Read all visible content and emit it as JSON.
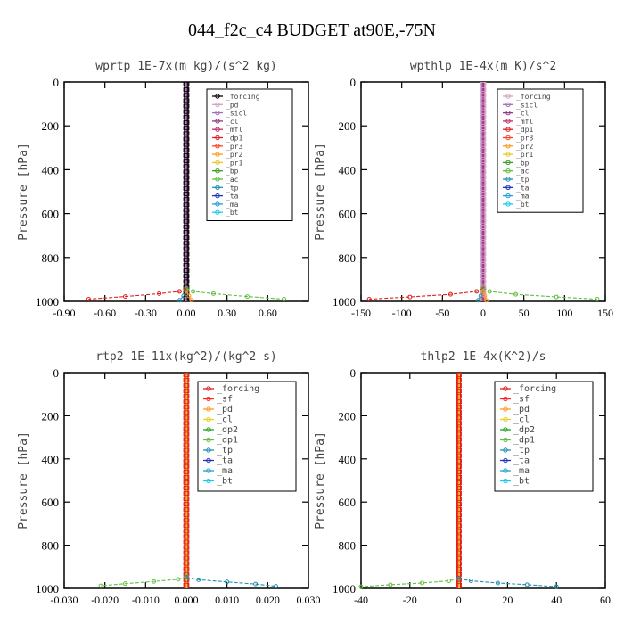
{
  "figure_title": "044_f2c_c4  BUDGET at90E,-75N",
  "colors": {
    "frame": "#000000",
    "text": "#444444",
    "forcing": "#000000",
    "pd": "#d4a0c8",
    "sicl": "#a070b8",
    "cl": "#8b3a8b",
    "mfl": "#c0306a",
    "dp1": "#e02020",
    "pr3": "#ff4020",
    "pr2": "#ff9a20",
    "pr1": "#e6c830",
    "bp": "#3aa020",
    "ac": "#60c040",
    "tp": "#2090b0",
    "ta": "#2030c0",
    "ma": "#20a0d0",
    "bt": "#20c8e8",
    "forcing_red": "#e02020",
    "sf": "#ff2020",
    "pd_orange": "#ff9a20",
    "cl_yellow": "#e6d020",
    "dp2": "#20a020",
    "dp1_green": "#60c040"
  },
  "chart_data": [
    {
      "type": "line",
      "title": "wprtp  1E-7x(m kg)/(s^2 kg)",
      "ylabel": "Pressure [hPa]",
      "xlim": [
        -0.9,
        0.9
      ],
      "ylim": [
        1000,
        0
      ],
      "xticks": [
        -0.9,
        -0.6,
        -0.3,
        0.0,
        0.3,
        0.6
      ],
      "xtick_labels": [
        "-0.90",
        "-0.60",
        "-0.30",
        "0.00",
        "0.30",
        "0.60"
      ],
      "yticks": [
        0,
        200,
        400,
        600,
        800,
        1000
      ],
      "ytick_labels": [
        "0",
        "200",
        "400",
        "600",
        "800",
        "1000"
      ],
      "legend": [
        "_forcing",
        "_pd",
        "_sicl",
        "_cl",
        "_mfl",
        "_dp1",
        "_pr3",
        "_pr2",
        "_pr1",
        "_bp",
        "_ac",
        "_tp",
        "_ta",
        "_ma",
        "_bt"
      ],
      "legend_colors": [
        "forcing",
        "pd",
        "sicl",
        "cl",
        "mfl",
        "dp1",
        "pr3",
        "pr2",
        "pr1",
        "bp",
        "ac",
        "tp",
        "ta",
        "ma",
        "bt"
      ],
      "series": [
        {
          "name": "_dp1",
          "color": "dp1",
          "x": [
            0,
            -0.05,
            -0.2,
            -0.45,
            -0.72
          ],
          "y": [
            940,
            955,
            965,
            978,
            990
          ]
        },
        {
          "name": "_ac",
          "color": "ac",
          "x": [
            0,
            0.05,
            0.2,
            0.45,
            0.72
          ],
          "y": [
            940,
            955,
            965,
            978,
            990
          ]
        },
        {
          "name": "_tp",
          "color": "tp",
          "x": [
            0,
            -0.02,
            -0.05
          ],
          "y": [
            955,
            975,
            995
          ]
        },
        {
          "name": "_pr2",
          "color": "pr2",
          "x": [
            0,
            0.02,
            0.04
          ],
          "y": [
            955,
            975,
            995
          ]
        }
      ]
    },
    {
      "type": "line",
      "title": "wpthlp  1E-4x(m K)/s^2",
      "ylabel": "Pressure [hPa]",
      "xlim": [
        -150,
        150
      ],
      "ylim": [
        1000,
        0
      ],
      "xticks": [
        -150,
        -100,
        -50,
        0,
        50,
        100,
        150
      ],
      "xtick_labels": [
        "-150",
        "-100",
        "-50",
        "0",
        "50",
        "100",
        "150"
      ],
      "yticks": [
        0,
        200,
        400,
        600,
        800,
        1000
      ],
      "ytick_labels": [
        "0",
        "200",
        "400",
        "600",
        "800",
        "1000"
      ],
      "legend": [
        "_forcing",
        "_sicl",
        "_cl",
        "_mfl",
        "_dp1",
        "_pr3",
        "_pr2",
        "_pr1",
        "_bp",
        "_ac",
        "_tp",
        "_ta",
        "_ma",
        "_bt"
      ],
      "legend_colors": [
        "pd",
        "sicl",
        "cl",
        "mfl",
        "dp1",
        "pr3",
        "pr2",
        "pr1",
        "bp",
        "ac",
        "tp",
        "ta",
        "ma",
        "bt"
      ],
      "series": [
        {
          "name": "_dp1",
          "color": "dp1",
          "x": [
            0,
            -8,
            -40,
            -90,
            -140
          ],
          "y": [
            940,
            955,
            968,
            980,
            990
          ]
        },
        {
          "name": "_ac",
          "color": "ac",
          "x": [
            0,
            8,
            40,
            90,
            140
          ],
          "y": [
            940,
            955,
            968,
            980,
            990
          ]
        },
        {
          "name": "_tp",
          "color": "tp",
          "x": [
            0,
            -3,
            -6
          ],
          "y": [
            955,
            975,
            995
          ]
        },
        {
          "name": "_pr2",
          "color": "pr2",
          "x": [
            0,
            2,
            4
          ],
          "y": [
            955,
            975,
            995
          ]
        }
      ]
    },
    {
      "type": "line",
      "title": "rtp2  1E-11x(kg^2)/(kg^2 s)",
      "ylabel": "Pressure [hPa]",
      "xlim": [
        -0.03,
        0.03
      ],
      "ylim": [
        1000,
        0
      ],
      "xticks": [
        -0.03,
        -0.02,
        -0.01,
        0.0,
        0.01,
        0.02,
        0.03
      ],
      "xtick_labels": [
        "-0.030",
        "-0.020",
        "-0.010",
        "0.000",
        "0.010",
        "0.020",
        "0.030"
      ],
      "yticks": [
        0,
        200,
        400,
        600,
        800,
        1000
      ],
      "ytick_labels": [
        "0",
        "200",
        "400",
        "600",
        "800",
        "1000"
      ],
      "legend": [
        "_forcing",
        "_sf",
        "_pd",
        "_cl",
        "_dp2",
        "_dp1",
        "_tp",
        "_ta",
        "_ma",
        "_bt"
      ],
      "legend_colors": [
        "forcing_red",
        "sf",
        "pd_orange",
        "cl_yellow",
        "dp2",
        "dp1_green",
        "tp",
        "ta",
        "ma",
        "bt"
      ],
      "series": [
        {
          "name": "_dp1",
          "color": "dp1_green",
          "x": [
            0,
            -0.002,
            -0.008,
            -0.015,
            -0.021
          ],
          "y": [
            945,
            958,
            968,
            978,
            988
          ]
        },
        {
          "name": "_tp",
          "color": "tp",
          "x": [
            0,
            0.003,
            0.01,
            0.017,
            0.022
          ],
          "y": [
            948,
            960,
            970,
            980,
            990
          ]
        }
      ]
    },
    {
      "type": "line",
      "title": "thlp2  1E-4x(K^2)/s",
      "ylabel": "Pressure [hPa]",
      "xlim": [
        -40,
        60
      ],
      "ylim": [
        1000,
        0
      ],
      "xticks": [
        -40,
        -20,
        0,
        20,
        40,
        60
      ],
      "xtick_labels": [
        "-40",
        "-20",
        "0",
        "20",
        "40",
        "60"
      ],
      "yticks": [
        0,
        200,
        400,
        600,
        800,
        1000
      ],
      "ytick_labels": [
        "0",
        "200",
        "400",
        "600",
        "800",
        "1000"
      ],
      "legend": [
        "_forcing",
        "_sf",
        "_pd",
        "_cl",
        "_dp2",
        "_dp1",
        "_tp",
        "_ta",
        "_ma",
        "_bt"
      ],
      "legend_colors": [
        "forcing_red",
        "sf",
        "pd_orange",
        "cl_yellow",
        "dp2",
        "dp1_green",
        "tp",
        "ta",
        "ma",
        "bt"
      ],
      "series": [
        {
          "name": "_dp1",
          "color": "dp1_green",
          "x": [
            0,
            -4,
            -15,
            -28,
            -40
          ],
          "y": [
            955,
            965,
            975,
            983,
            992
          ]
        },
        {
          "name": "_tp",
          "color": "tp",
          "x": [
            0,
            5,
            16,
            28,
            40
          ],
          "y": [
            955,
            965,
            975,
            983,
            992
          ]
        }
      ]
    }
  ]
}
